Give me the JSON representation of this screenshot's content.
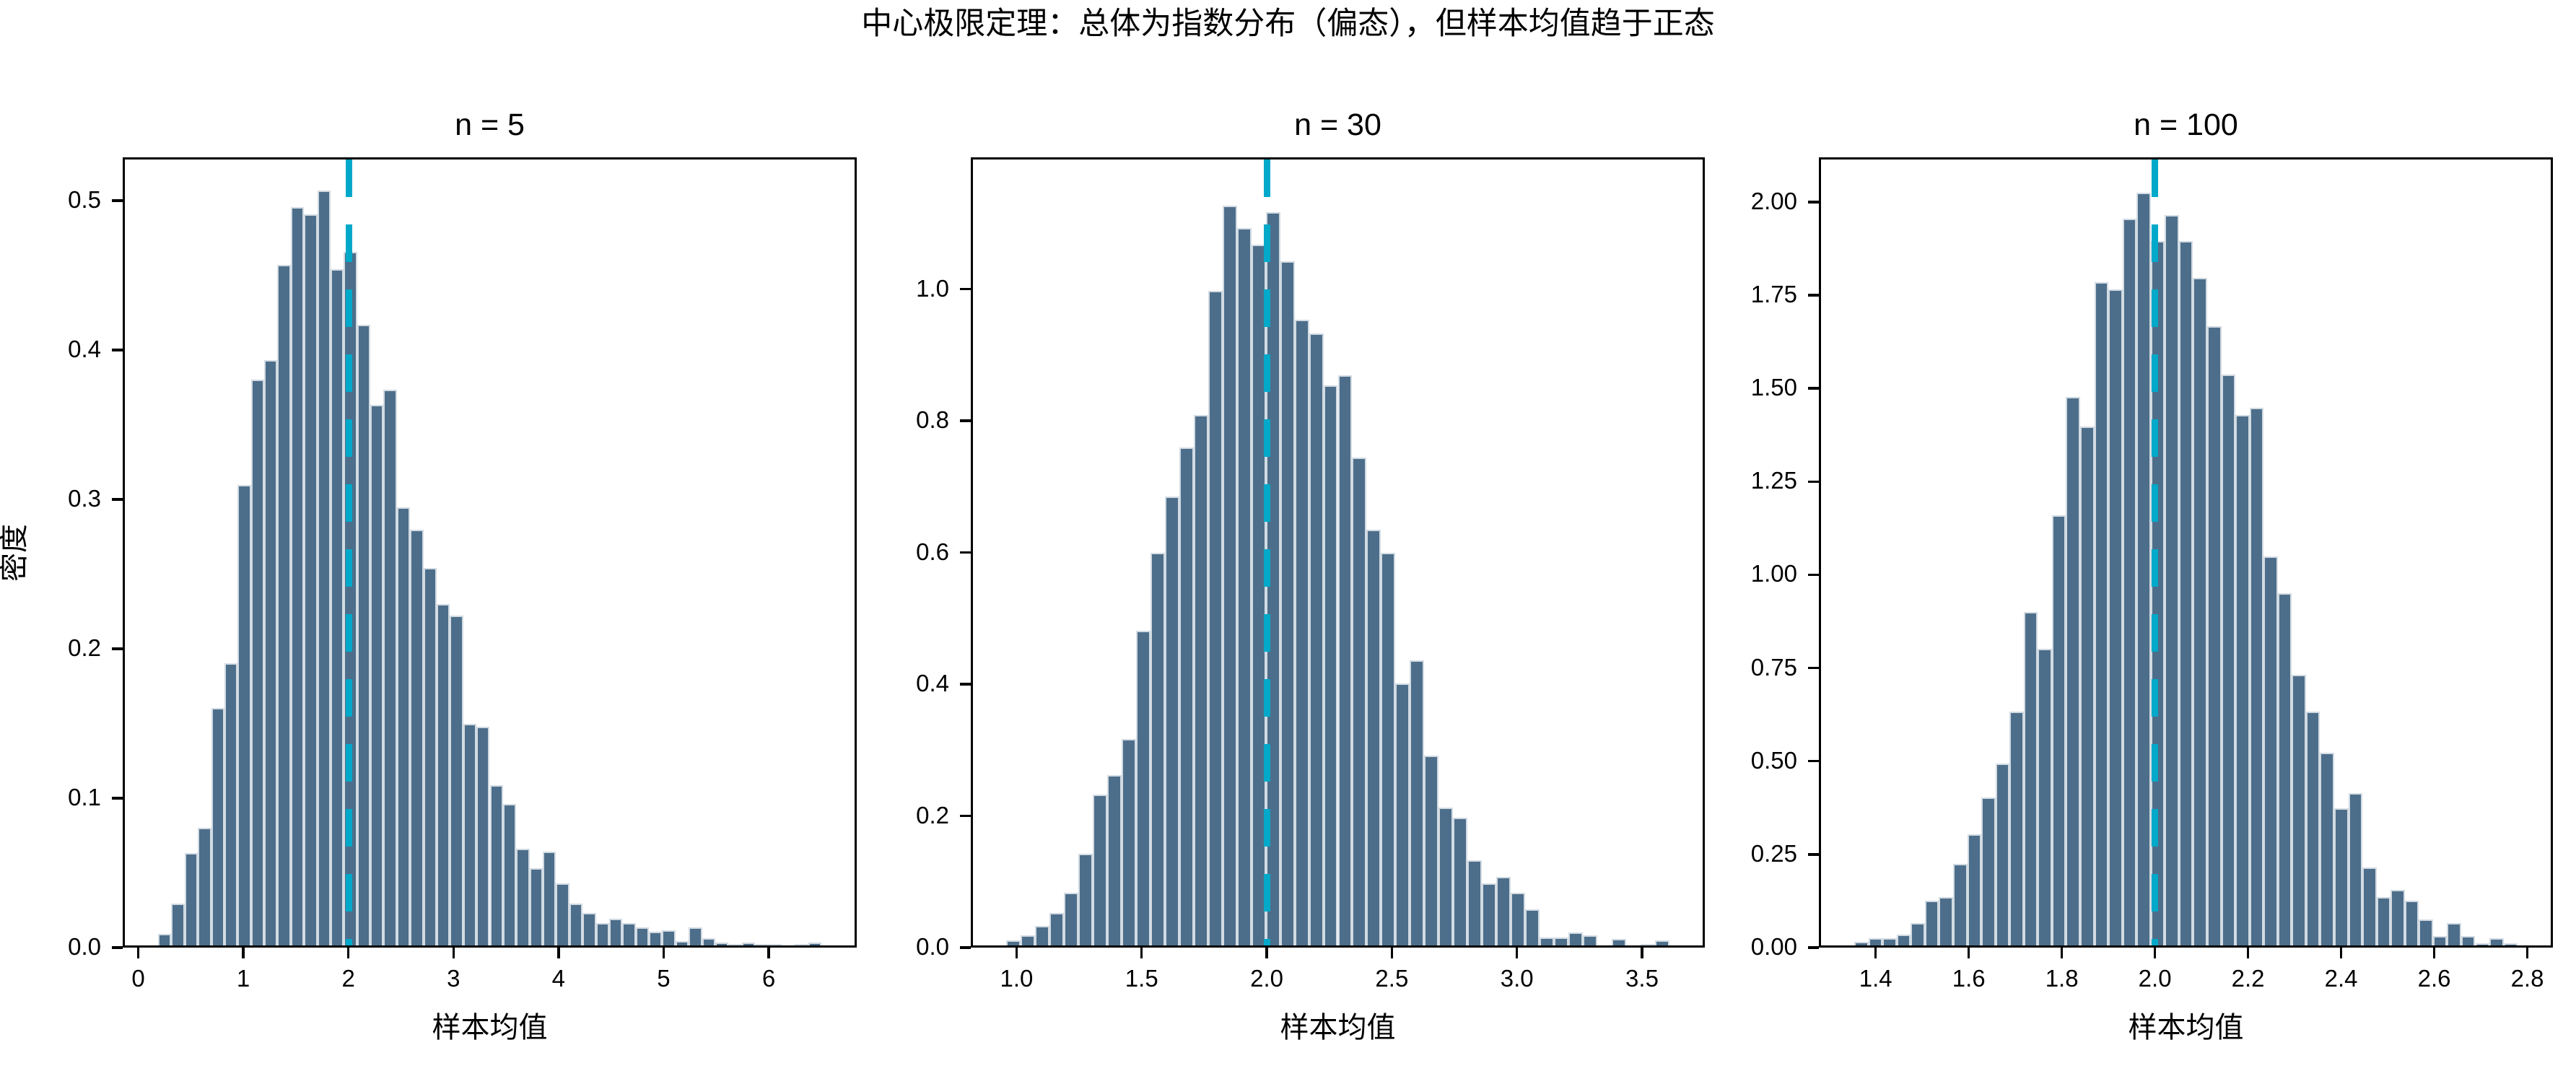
{
  "figure": {
    "suptitle": "中心极限定理：总体为指数分布（偏态），但样本均值趋于正态",
    "colors": {
      "background": "#ffffff",
      "axis": "#000000",
      "bar_fill": "#4d6e8a",
      "bar_edge": "#d2dbe3",
      "mean_line": "#00a8c9"
    }
  },
  "chart_data": [
    {
      "type": "bar",
      "title": "n = 5",
      "xlabel": "样本均值",
      "ylabel": "密度",
      "grid": false,
      "bins": {
        "start": 0.17,
        "width": 0.127
      },
      "values": [
        0.008,
        0.028,
        0.062,
        0.079,
        0.16,
        0.19,
        0.31,
        0.381,
        0.394,
        0.458,
        0.497,
        0.492,
        0.508,
        0.455,
        0.467,
        0.418,
        0.364,
        0.374,
        0.295,
        0.28,
        0.254,
        0.23,
        0.222,
        0.149,
        0.147,
        0.108,
        0.095,
        0.065,
        0.052,
        0.063,
        0.042,
        0.028,
        0.022,
        0.015,
        0.018,
        0.015,
        0.012,
        0.009,
        0.01,
        0.003,
        0.012,
        0.005,
        0.002,
        0.001,
        0.002,
        0.001,
        0.001,
        0.0,
        0.001,
        0.002
      ],
      "xlim": [
        -0.148,
        6.838
      ],
      "ylim": [
        0,
        0.529
      ],
      "xticks": {
        "values": [
          0,
          1,
          2,
          3,
          4,
          5,
          6
        ],
        "labels": [
          "0",
          "1",
          "2",
          "3",
          "4",
          "5",
          "6"
        ]
      },
      "yticks": {
        "values": [
          0,
          0.1,
          0.2,
          0.3,
          0.4,
          0.5
        ],
        "labels": [
          "0.0",
          "0.1",
          "0.2",
          "0.3",
          "0.4",
          "0.5"
        ]
      },
      "mean_line": {
        "x": 2.0,
        "style": "dashed"
      }
    },
    {
      "type": "bar",
      "title": "n = 30",
      "xlabel": "样本均值",
      "ylabel": "",
      "grid": false,
      "bins": {
        "start": 0.95,
        "width": 0.058
      },
      "values": [
        0.008,
        0.015,
        0.03,
        0.05,
        0.08,
        0.14,
        0.23,
        0.26,
        0.315,
        0.48,
        0.6,
        0.685,
        0.76,
        0.81,
        1.0,
        1.13,
        1.095,
        1.07,
        1.12,
        1.045,
        0.955,
        0.935,
        0.855,
        0.87,
        0.745,
        0.635,
        0.6,
        0.4,
        0.435,
        0.29,
        0.21,
        0.195,
        0.13,
        0.095,
        0.105,
        0.08,
        0.055,
        0.012,
        0.012,
        0.02,
        0.015,
        0.0,
        0.01,
        0.0,
        0.002,
        0.008
      ],
      "xlim": [
        0.817,
        3.751
      ],
      "ylim": [
        0,
        1.2
      ],
      "xticks": {
        "values": [
          1.0,
          1.5,
          2.0,
          2.5,
          3.0,
          3.5
        ],
        "labels": [
          "1.0",
          "1.5",
          "2.0",
          "2.5",
          "3.0",
          "3.5"
        ]
      },
      "yticks": {
        "values": [
          0,
          0.2,
          0.4,
          0.6,
          0.8,
          1.0
        ],
        "labels": [
          "0.0",
          "0.2",
          "0.4",
          "0.6",
          "0.8",
          "1.0"
        ]
      },
      "mean_line": {
        "x": 2.0,
        "style": "dashed"
      }
    },
    {
      "type": "bar",
      "title": "n = 100",
      "xlabel": "样本均值",
      "ylabel": "",
      "grid": false,
      "bins": {
        "start": 1.35,
        "width": 0.0305
      },
      "values": [
        0.01,
        0.02,
        0.02,
        0.03,
        0.06,
        0.12,
        0.13,
        0.22,
        0.3,
        0.4,
        0.49,
        0.63,
        0.9,
        0.8,
        1.16,
        1.48,
        1.4,
        1.79,
        1.77,
        1.96,
        2.03,
        1.9,
        1.97,
        1.9,
        1.8,
        1.67,
        1.54,
        1.43,
        1.45,
        1.05,
        0.95,
        0.73,
        0.63,
        0.52,
        0.37,
        0.41,
        0.21,
        0.13,
        0.15,
        0.12,
        0.07,
        0.025,
        0.06,
        0.025,
        0.005,
        0.02,
        0.005
      ],
      "xlim": [
        1.278,
        2.855
      ],
      "ylim": [
        0,
        2.12
      ],
      "xticks": {
        "values": [
          1.4,
          1.6,
          1.8,
          2.0,
          2.2,
          2.4,
          2.6,
          2.8
        ],
        "labels": [
          "1.4",
          "1.6",
          "1.8",
          "2.0",
          "2.2",
          "2.4",
          "2.6",
          "2.8"
        ]
      },
      "yticks": {
        "values": [
          0,
          0.25,
          0.5,
          0.75,
          1.0,
          1.25,
          1.5,
          1.75,
          2.0
        ],
        "labels": [
          "0.00",
          "0.25",
          "0.50",
          "0.75",
          "1.00",
          "1.25",
          "1.50",
          "1.75",
          "2.00"
        ]
      },
      "mean_line": {
        "x": 2.0,
        "style": "dashed"
      }
    }
  ]
}
